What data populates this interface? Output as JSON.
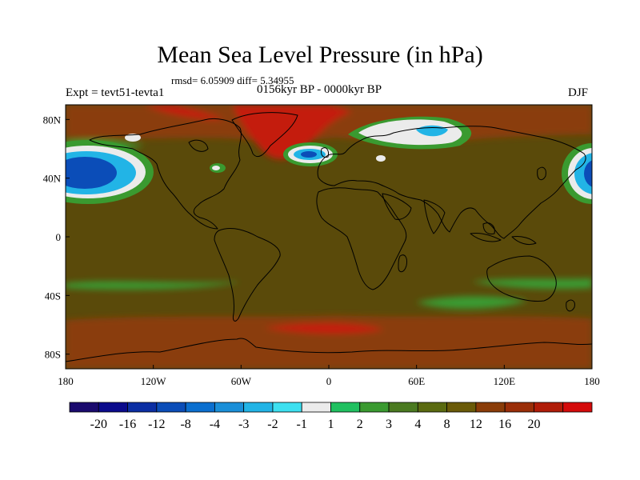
{
  "title": "Mean Sea Level Pressure (in hPa)",
  "stats": "rmsd= 6.05909 diff= 5.34955",
  "expt": "Expt = tevt51-tevta1",
  "period": "0156kyr BP - 0000kyr BP",
  "season": "DJF",
  "map": {
    "lon_range": [
      -180,
      180
    ],
    "lat_range": [
      -90,
      90
    ],
    "lon_ticks": [
      {
        "value": -180,
        "label": "180"
      },
      {
        "value": -120,
        "label": "120W"
      },
      {
        "value": -60,
        "label": "60W"
      },
      {
        "value": 0,
        "label": "0"
      },
      {
        "value": 60,
        "label": "60E"
      },
      {
        "value": 120,
        "label": "120E"
      },
      {
        "value": 180,
        "label": "180"
      }
    ],
    "lat_ticks": [
      {
        "value": 80,
        "label": "80N"
      },
      {
        "value": 40,
        "label": "40N"
      },
      {
        "value": 0,
        "label": "0"
      },
      {
        "value": -40,
        "label": "40S"
      },
      {
        "value": -80,
        "label": "80S"
      }
    ]
  },
  "colorbar": {
    "colors": [
      "#1a0a6e",
      "#0a0a8c",
      "#0b2ea3",
      "#0b4db8",
      "#0b6fcf",
      "#1a8fd8",
      "#22b4e6",
      "#3de0f0",
      "#ebebeb",
      "#20c060",
      "#3a9a30",
      "#4a7a20",
      "#5a6a10",
      "#6a5a08",
      "#8a3c08",
      "#9a2e08",
      "#b01c08",
      "#d40a0a"
    ],
    "labels": [
      "-20",
      "-16",
      "-12",
      "-8",
      "-4",
      "-3",
      "-2",
      "-1",
      "1",
      "2",
      "3",
      "4",
      "8",
      "12",
      "16",
      "20"
    ]
  },
  "colors": {
    "background_field": "#5a4a0a",
    "moderate_high": "#8a3c08",
    "strong_high": "#c41a0a",
    "weak_low": "#3a9a30",
    "low_strong": "#0b4db8",
    "low_mid": "#22b4e6",
    "near_zero": "#ebebeb"
  },
  "features": [
    {
      "name": "north-pacific-low-west",
      "type": "low"
    },
    {
      "name": "north-pacific-low-east",
      "type": "low"
    },
    {
      "name": "north-atlantic-low",
      "type": "low"
    },
    {
      "name": "barents-low",
      "type": "low"
    },
    {
      "name": "greenland-high",
      "type": "high"
    },
    {
      "name": "arctic-high",
      "type": "high"
    },
    {
      "name": "southern-ocean-high",
      "type": "high"
    },
    {
      "name": "subtropical-south-weak",
      "type": "weak"
    }
  ]
}
